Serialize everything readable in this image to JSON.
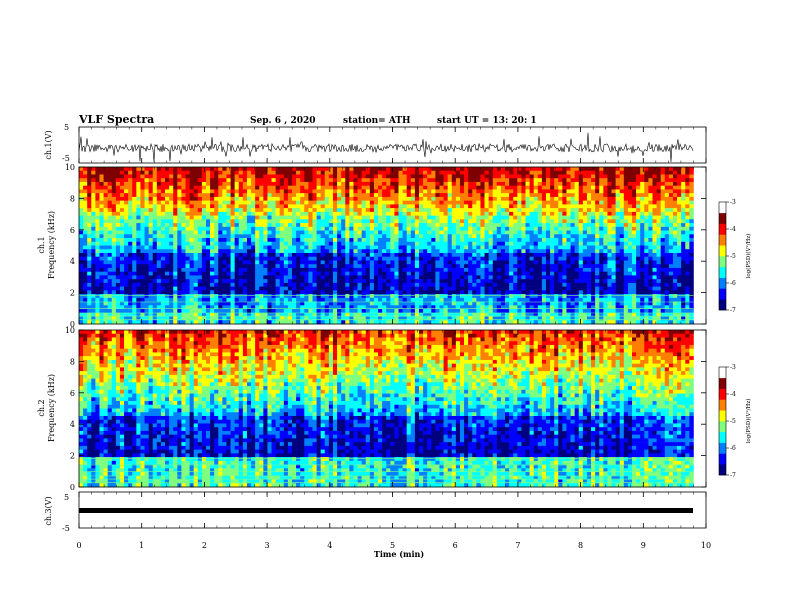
{
  "header": {
    "title": "VLF Spectra",
    "date": "Sep. 6 , 2020",
    "station": "station= ATH",
    "start_ut": "start UT = 13: 20: 1"
  },
  "chart_data": [
    {
      "type": "line",
      "panel": "ch1-waveform",
      "ylabel": "ch.1(V)",
      "yticks": [
        "5",
        "-5"
      ],
      "ylim": [
        -5,
        5
      ],
      "description_level": "noisy trace around -1 V"
    },
    {
      "type": "heatmap",
      "panel": "ch1-spectrogram",
      "ylabel": "ch.1\nFrequency (kHz)",
      "ylabel_line1": "ch.1",
      "ylabel_line2": "Frequency (kHz)",
      "yticks": [
        "0",
        "2",
        "4",
        "6",
        "8",
        "10"
      ],
      "ylim": [
        0,
        10
      ],
      "colorbar": {
        "ticks": [
          "-3",
          "-4",
          "-5",
          "-6",
          "-7"
        ],
        "range": [
          -7,
          -3
        ],
        "label": "log(PSD)(V²/Hz)"
      },
      "colors": [
        "#00007f",
        "#0000ff",
        "#007fff",
        "#00ffff",
        "#7fff7f",
        "#ffff00",
        "#ff7f00",
        "#ff0000",
        "#7f0000"
      ]
    },
    {
      "type": "heatmap",
      "panel": "ch2-spectrogram",
      "ylabel_line1": "ch.2",
      "ylabel_line2": "Frequency (kHz)",
      "yticks": [
        "0",
        "2",
        "4",
        "6",
        "8",
        "10"
      ],
      "ylim": [
        0,
        10
      ],
      "colorbar": {
        "ticks": [
          "-3",
          "-4",
          "-5",
          "-6",
          "-7"
        ],
        "range": [
          -7,
          -3
        ],
        "label": "log(PSD)(V²/Hz)"
      }
    },
    {
      "type": "line",
      "panel": "ch3-waveform",
      "ylabel": "ch.3(V)",
      "yticks": [
        "5",
        "-5"
      ],
      "ylim": [
        -5,
        5
      ]
    }
  ],
  "xaxis": {
    "label": "Time (min)",
    "ticks": [
      "0",
      "1",
      "2",
      "3",
      "4",
      "5",
      "6",
      "7",
      "8",
      "9",
      "10"
    ],
    "xlim": [
      0,
      10
    ],
    "data_end_min": 9.8
  }
}
